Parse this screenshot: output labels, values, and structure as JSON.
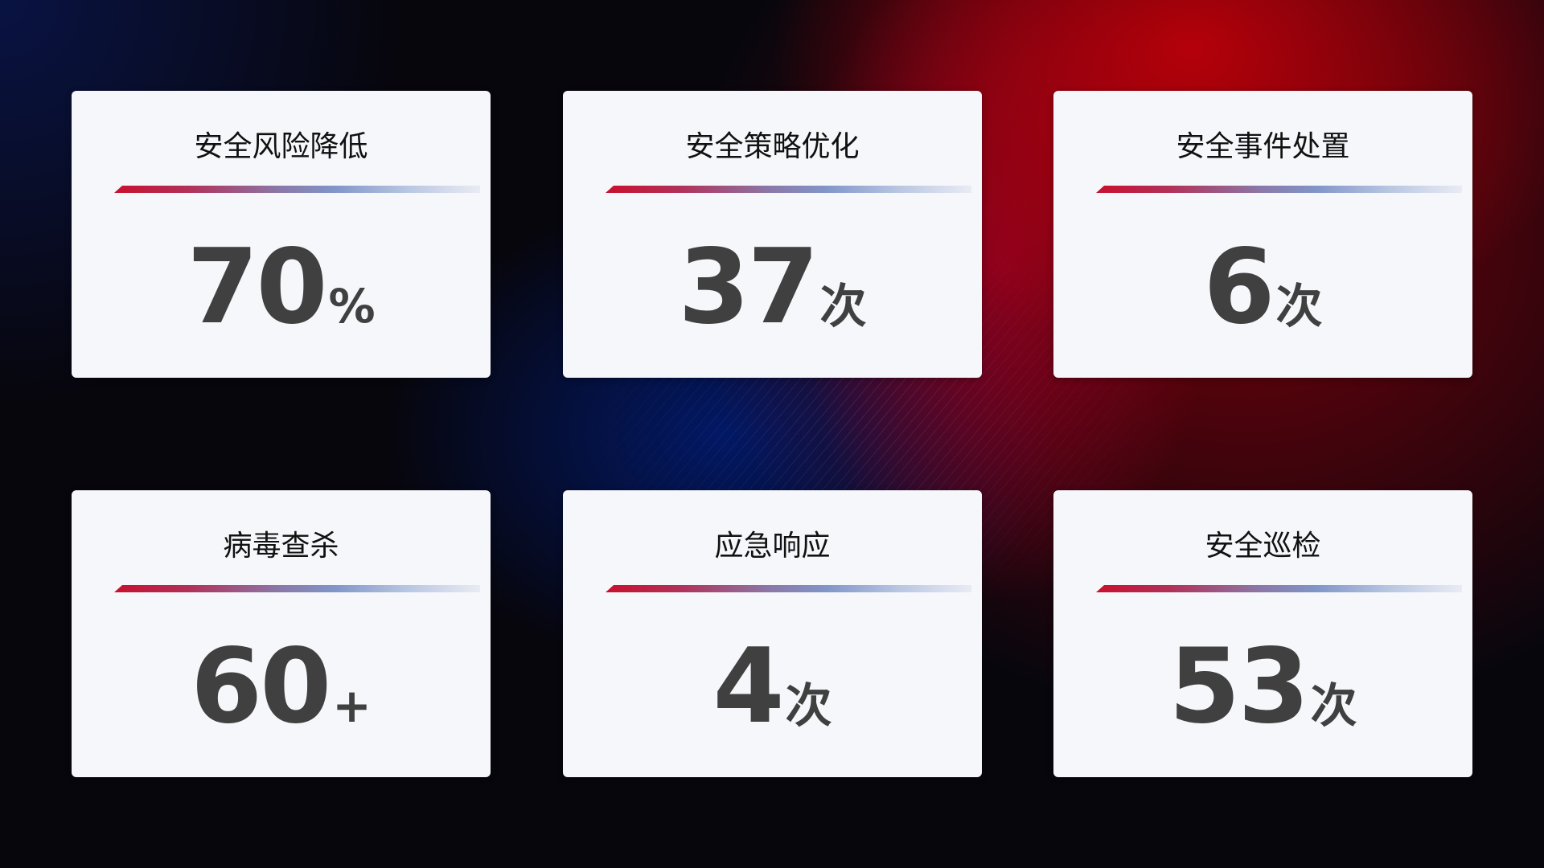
{
  "cards": [
    {
      "title": "安全风险降低",
      "value": "70",
      "unit": "%"
    },
    {
      "title": "安全策略优化",
      "value": "37",
      "unit": "次"
    },
    {
      "title": "安全事件处置",
      "value": "6",
      "unit": "次"
    },
    {
      "title": "病毒查杀",
      "value": "60",
      "unit": "+"
    },
    {
      "title": "应急响应",
      "value": "4",
      "unit": "次"
    },
    {
      "title": "安全巡检",
      "value": "53",
      "unit": "次"
    }
  ],
  "colors": {
    "accent_red": "#c8102e",
    "accent_blue": "#8095c8",
    "card_bg": "#f6f7fb",
    "value_text": "#404040"
  }
}
